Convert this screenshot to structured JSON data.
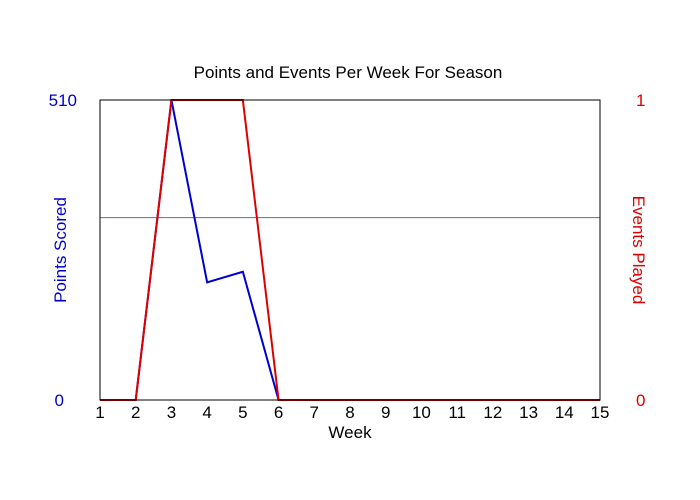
{
  "chart_data": {
    "type": "line",
    "title": "Points and Events Per Week For Season",
    "xlabel": "Week",
    "x": [
      1,
      2,
      3,
      4,
      5,
      6,
      7,
      8,
      9,
      10,
      11,
      12,
      13,
      14,
      15
    ],
    "xlim": [
      1,
      15
    ],
    "left_axis": {
      "label": "Points Scored",
      "ylim": [
        0,
        510
      ],
      "tick_labels": [
        "0",
        "510"
      ],
      "color": "#0000cc"
    },
    "right_axis": {
      "label": "Events Played",
      "ylim": [
        0,
        1
      ],
      "tick_labels": [
        "0",
        "1"
      ],
      "color": "#dd0000"
    },
    "series": [
      {
        "axis": "left",
        "color": "#0000cc",
        "values": [
          0,
          0,
          510,
          200,
          218,
          0,
          0,
          0,
          0,
          0,
          0,
          0,
          0,
          0,
          0
        ]
      },
      {
        "axis": "right",
        "color": "#dd0000",
        "values": [
          0,
          0,
          1,
          1,
          1,
          0,
          0,
          0,
          0,
          0,
          0,
          0,
          0,
          0,
          0
        ]
      }
    ],
    "reference_line": {
      "axis": "left",
      "value": 310,
      "color": "#6666aa"
    },
    "frame_color": "#000000",
    "grid": false,
    "legend": "none"
  }
}
